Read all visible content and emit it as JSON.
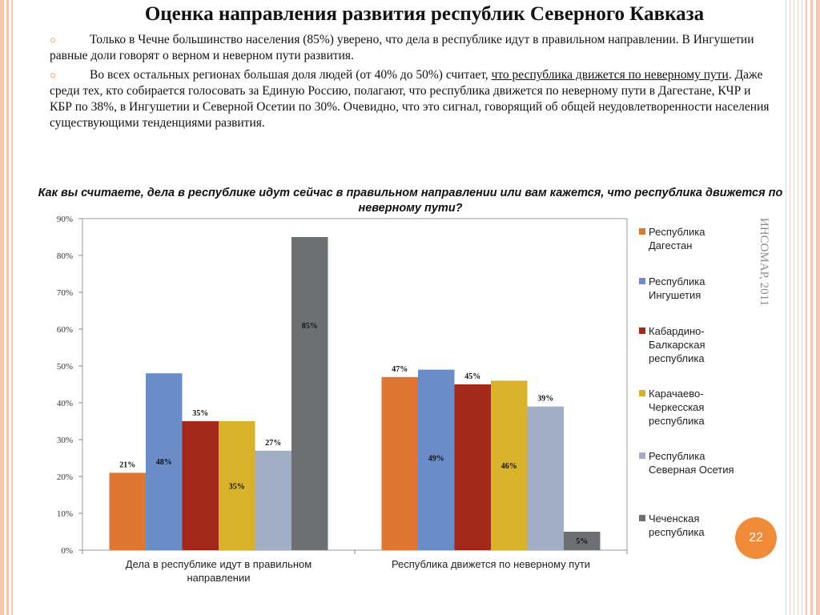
{
  "slide": {
    "title": "Оценка направления развития республик Северного Кавказа",
    "bullet_mark": "○",
    "bullets": [
      {
        "text": "Только в Чечне большинство населения (85%) уверено, что дела в республике идут в правильном направлении. В Ингушетии равные доли говорят о верном и неверном пути развития."
      },
      {
        "text_before": "Во всех остальных регионах большая доля людей (от 40% до 50%) считает, ",
        "text_underlined": "что республика движется по неверному пути",
        "text_after": ". Даже среди тех, кто собирается голосовать за Единую Россию, полагают, что республика движется по неверному пути в Дагестане, КЧР и КБР по 38%, в Ингушетии и Северной Осетии по 30%. Очевидно, что это сигнал, говорящий об общей неудовлетворенности населения существующими тенденциями развития."
      }
    ],
    "source": "ИНСОМАР, 2011",
    "page_number": "22"
  },
  "chart_data": {
    "type": "bar",
    "title": "Как вы считаете, дела в республике идут сейчас в правильном направлении или вам кажется, что республика движется по неверному пути?",
    "categories": [
      "Дела в республике идут в правильном направлении",
      "Республика движется по неверному пути"
    ],
    "category_lines": [
      [
        "Дела в республике идут в правильном",
        "направлении"
      ],
      [
        "Республика движется по неверному пути"
      ]
    ],
    "ylim": [
      0,
      90
    ],
    "yticks": [
      0,
      10,
      20,
      30,
      40,
      50,
      60,
      70,
      80,
      90
    ],
    "ytick_labels": [
      "0%",
      "10%",
      "20%",
      "30%",
      "40%",
      "50%",
      "60%",
      "70%",
      "80%",
      "90%"
    ],
    "grid": false,
    "legend_position": "right",
    "series": [
      {
        "name": "Республика Дагестан",
        "legend_lines": [
          "Республика",
          "Дагестан"
        ],
        "color": "#e07634",
        "values": [
          21,
          47
        ],
        "labels": [
          "21%",
          "47%"
        ],
        "label_pos": [
          "above",
          "above"
        ]
      },
      {
        "name": "Республика Ингушетия",
        "legend_lines": [
          "Республика",
          "Ингушетия"
        ],
        "color": "#6b8cc7",
        "values": [
          48,
          49
        ],
        "labels": [
          "48%",
          "49%"
        ],
        "label_pos": [
          "inside",
          "inside"
        ]
      },
      {
        "name": "Кабардино-Балкарская республика",
        "legend_lines": [
          "Кабардино-",
          "Балкарская",
          "республика"
        ],
        "color": "#a3281c",
        "values": [
          35,
          45
        ],
        "labels": [
          "35%",
          "45%"
        ],
        "label_pos": [
          "above",
          "above"
        ]
      },
      {
        "name": "Карачаево-Черкесская республика",
        "legend_lines": [
          "Карачаево-",
          "Черкесская",
          "республика"
        ],
        "color": "#d9b22c",
        "values": [
          35,
          46
        ],
        "labels": [
          "35%",
          "46%"
        ],
        "label_pos": [
          "inside",
          "inside"
        ]
      },
      {
        "name": "Республика Северная Осетия",
        "legend_lines": [
          "Республика",
          "Северная Осетия"
        ],
        "color": "#a2aec5",
        "values": [
          27,
          39
        ],
        "labels": [
          "27%",
          "39%"
        ],
        "label_pos": [
          "above",
          "above"
        ]
      },
      {
        "name": "Чеченская республика",
        "legend_lines": [
          "Чеченская",
          "республика"
        ],
        "color": "#6d7073",
        "values": [
          85,
          5
        ],
        "labels": [
          "85%",
          "5%"
        ],
        "label_pos": [
          "inside",
          "inside"
        ]
      }
    ]
  }
}
